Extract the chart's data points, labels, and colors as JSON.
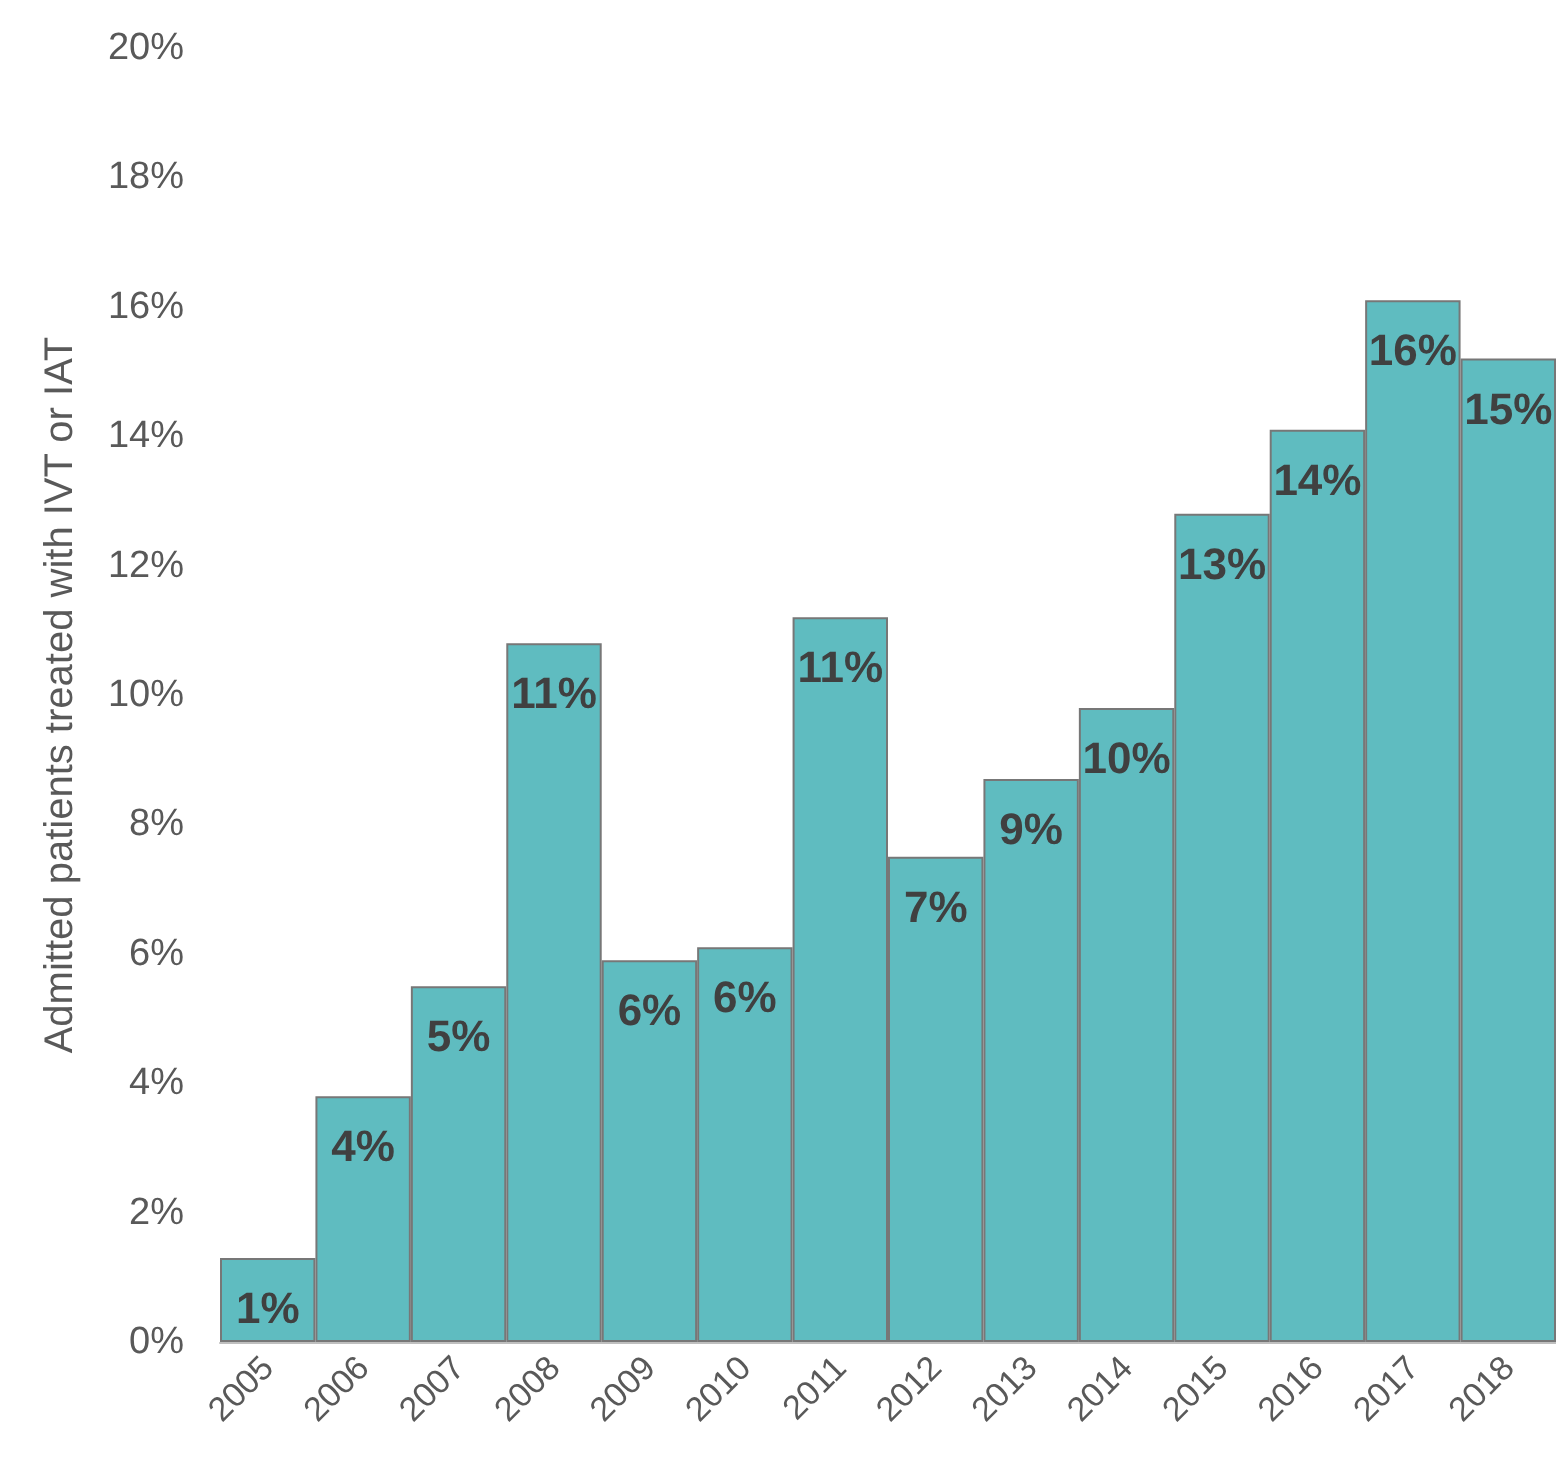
{
  "chart_data": {
    "type": "bar",
    "ylabel": "Admitted patients treated with IVT or IAT",
    "categories": [
      "2005",
      "2006",
      "2007",
      "2008",
      "2009",
      "2010",
      "2011",
      "2012",
      "2013",
      "2014",
      "2015",
      "2016",
      "2017",
      "2018"
    ],
    "values": [
      1.3,
      3.8,
      5.5,
      10.8,
      5.9,
      6.1,
      11.2,
      7.5,
      8.7,
      9.8,
      12.8,
      14.1,
      16.1,
      15.2
    ],
    "value_labels": [
      "1%",
      "4%",
      "5%",
      "11%",
      "6%",
      "6%",
      "11%",
      "7%",
      "9%",
      "10%",
      "13%",
      "14%",
      "16%",
      "15%"
    ],
    "color": "#5fbcc0",
    "ylim": [
      0,
      20
    ],
    "yticks": [
      {
        "value": 0,
        "label": "0%"
      },
      {
        "value": 2,
        "label": "2%"
      },
      {
        "value": 4,
        "label": "4%"
      },
      {
        "value": 6,
        "label": "6%"
      },
      {
        "value": 8,
        "label": "8%"
      },
      {
        "value": 10,
        "label": "10%"
      },
      {
        "value": 12,
        "label": "12%"
      },
      {
        "value": 14,
        "label": "14%"
      },
      {
        "value": 16,
        "label": "16%"
      },
      {
        "value": 18,
        "label": "18%"
      },
      {
        "value": 20,
        "label": "20%"
      }
    ],
    "grid": false
  }
}
